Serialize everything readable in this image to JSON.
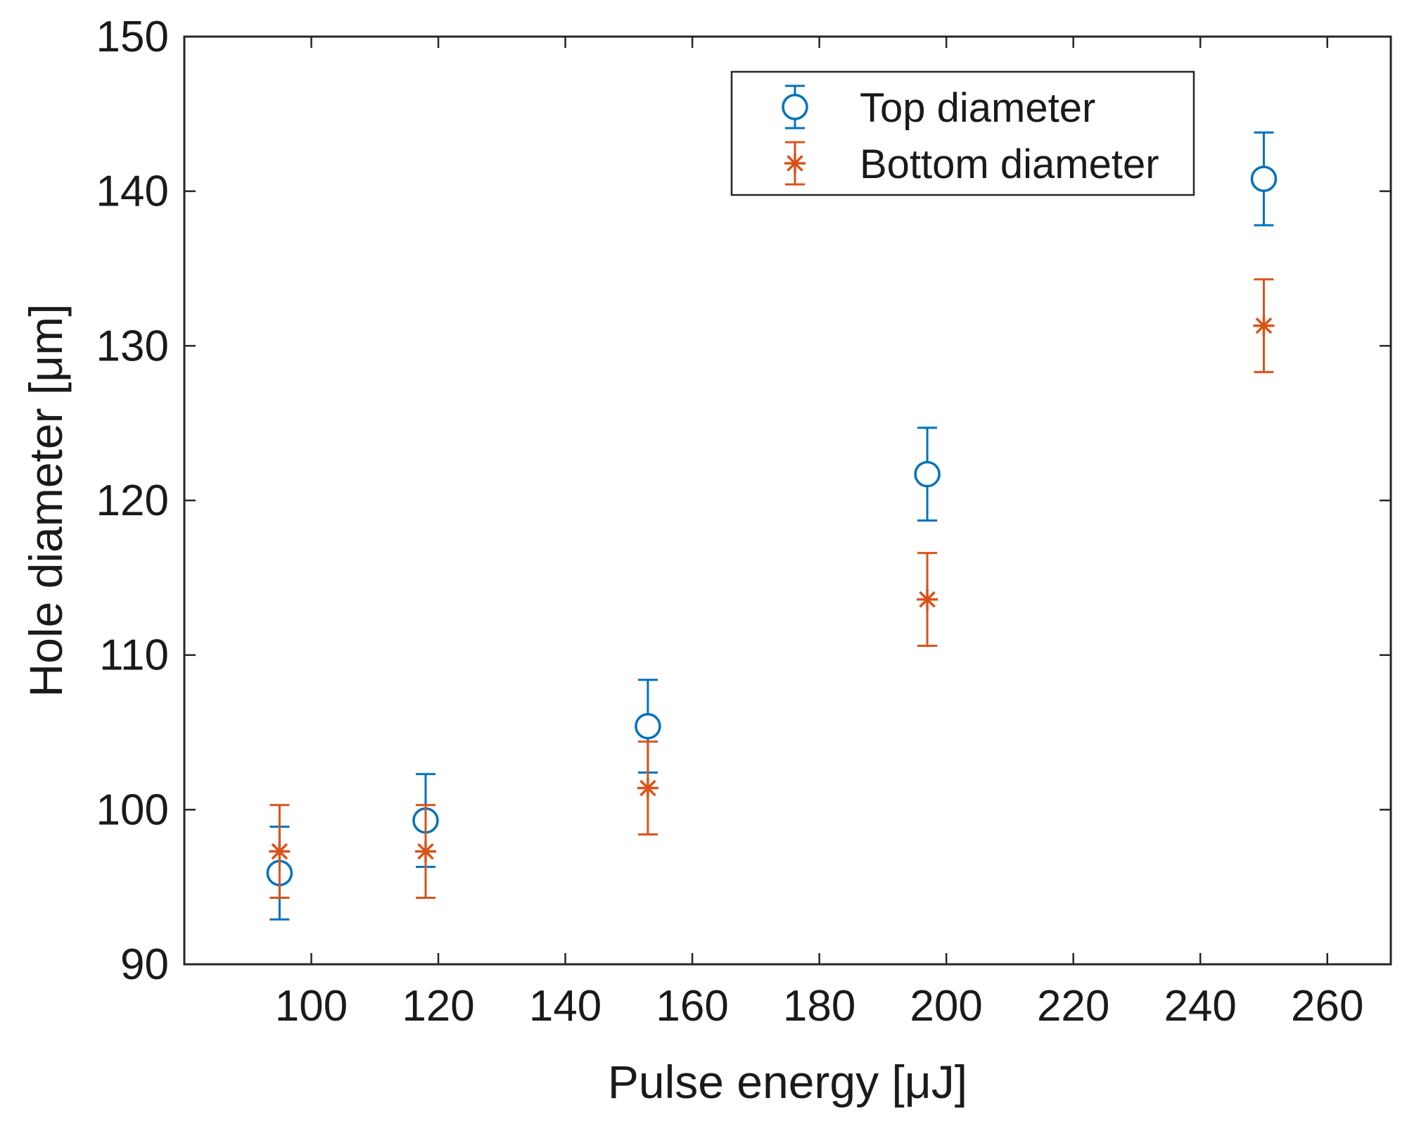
{
  "chart_data": {
    "type": "scatter",
    "title": "",
    "xlabel": "Pulse energy [μJ]",
    "ylabel": "Hole diameter [μm]",
    "xlim": [
      80,
      270
    ],
    "ylim": [
      90,
      150
    ],
    "xticks": [
      100,
      120,
      140,
      160,
      180,
      200,
      220,
      240,
      260
    ],
    "yticks": [
      90,
      100,
      110,
      120,
      130,
      140,
      150
    ],
    "grid": false,
    "legend_position": "top-right",
    "series": [
      {
        "name": "Top diameter",
        "marker": "circle",
        "color": "#0072BD",
        "points": [
          {
            "x": 95,
            "y": 95.9,
            "err": 3.0
          },
          {
            "x": 118,
            "y": 99.3,
            "err": 3.0
          },
          {
            "x": 153,
            "y": 105.4,
            "err": 3.0
          },
          {
            "x": 197,
            "y": 121.7,
            "err": 3.0
          },
          {
            "x": 250,
            "y": 140.8,
            "err": 3.0
          }
        ]
      },
      {
        "name": "Bottom diameter",
        "marker": "asterisk",
        "color": "#D95319",
        "points": [
          {
            "x": 95,
            "y": 97.3,
            "err": 3.0
          },
          {
            "x": 118,
            "y": 97.3,
            "err": 3.0
          },
          {
            "x": 153,
            "y": 101.4,
            "err": 3.0
          },
          {
            "x": 197,
            "y": 113.6,
            "err": 3.0
          },
          {
            "x": 250,
            "y": 131.3,
            "err": 3.0
          }
        ]
      }
    ]
  }
}
